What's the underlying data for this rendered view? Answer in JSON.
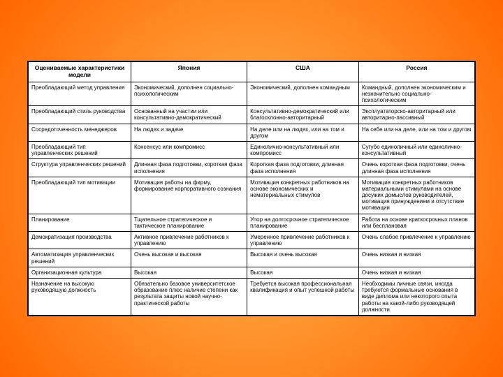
{
  "table": {
    "columns": [
      "Оцениваемые характеристики модели",
      "Япония",
      "США",
      "Россия"
    ],
    "rows": [
      [
        "Преобладающий метод управления",
        "Экономический, дополнен социально-психологическим",
        "Экономический, дополнен командным",
        "Командный, дополнен экономическим и незначительно социально-психологическим"
      ],
      [
        "Преобладающий стиль руководства",
        "Основанный на участии или консультативно-демократический",
        "Консультативно-демократический или благосклонно-авторитарный",
        "Эксплуататорско-авторитарный или авторитарно-пассивный"
      ],
      [
        "Сосредоточенность менеджеров",
        "На людях и задаче",
        "На деле или на людях, или на том и другом",
        "На себе или на деле, или на том и другом"
      ],
      [
        "Преобладающий тип управленческих решений",
        "Консенсус или компромисс",
        "Единолично-консультативный или компромисс",
        "Сугубо единоличный или единолично-консультативный"
      ],
      [
        "Структура управленческих решений",
        "Длинная фаза подготовки, короткая фаза исполнения",
        "Короткая фаза подготовки, длинная фаза исполнения",
        "Очень короткая фаза подготовки, очень длинная фаза исполнения"
      ],
      [
        "Преобладающий тип мотивации",
        "Мотивация работы на фирму, формирование корпоративного сознания",
        "Мотивация конкретных работников на основе экономических и нематериальных стимулов",
        "Мотивация конкретных работников материальными стимулами на основе досужих домыслов руководителей, мотивация принуждением и отсутствие мотивации"
      ],
      [
        "Планирование",
        "Тщательное стратегическое и тактическое планирование",
        "Упор на долгосрочное стратегическое планирование",
        "Работа на основе краткосрочных планов или бесплановая"
      ],
      [
        "Демократизация производства",
        "Активное привлечение работников к управлению",
        "Умеренное привлечение работников к управлению",
        "Очень слабое привлечение к управлению"
      ],
      [
        "Автоматизация управленческих решений",
        "Очень высокая и высокая",
        "Высокая и очень высокая",
        "Очень низкая и низкая"
      ],
      [
        "Организационная культура",
        "Высокая",
        "Высокая",
        "Очень низкая и низкая"
      ],
      [
        "Назначение на высокую руководящую должность",
        "Обязательно базовое университетское образование плюс наличие степени как результата защиты новой научно-практической работы",
        "Требуется высокая профессиональная квалификация и опыт успешной работы",
        "Необходимы личные связи, иногда требуются формальные основания в виде диплома или некоторого опыта работы на какой-либо руководящей должности"
      ]
    ],
    "header_bg": "#ffffff",
    "border_color": "#000000",
    "cell_fontsize": 8,
    "header_fontsize": 8.5
  },
  "background": {
    "gradient_inner": "#ffcc66",
    "gradient_mid": "#ff9933",
    "gradient_outer": "#ff6600"
  }
}
